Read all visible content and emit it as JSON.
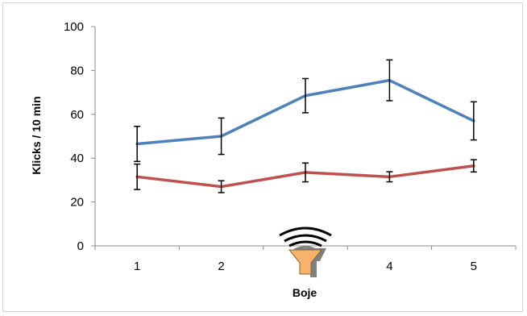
{
  "chart_data": {
    "type": "line",
    "title": "",
    "xlabel": "Boje",
    "ylabel": "Klicks / 10 min",
    "categories": [
      "1",
      "2",
      "3",
      "4",
      "5"
    ],
    "x_tick_labels": [
      "1",
      "2",
      "",
      "4",
      "5"
    ],
    "ylim": [
      0,
      100
    ],
    "yticks": [
      0,
      20,
      40,
      60,
      80,
      100
    ],
    "grid": false,
    "legend": "none",
    "series": [
      {
        "color": "#4F81BD",
        "values": [
          46.5,
          50,
          68.5,
          75.5,
          57
        ],
        "error": [
          8,
          8.3,
          7.8,
          9.3,
          8.7
        ]
      },
      {
        "color": "#C0504D",
        "values": [
          31.5,
          27,
          33.5,
          31.5,
          36.5
        ],
        "error": [
          5.8,
          2.7,
          4.3,
          2.3,
          2.8
        ]
      }
    ],
    "annotation": {
      "category": "3",
      "icon": "buoy-signal-icon",
      "icon_color": "#F9B26B"
    }
  }
}
